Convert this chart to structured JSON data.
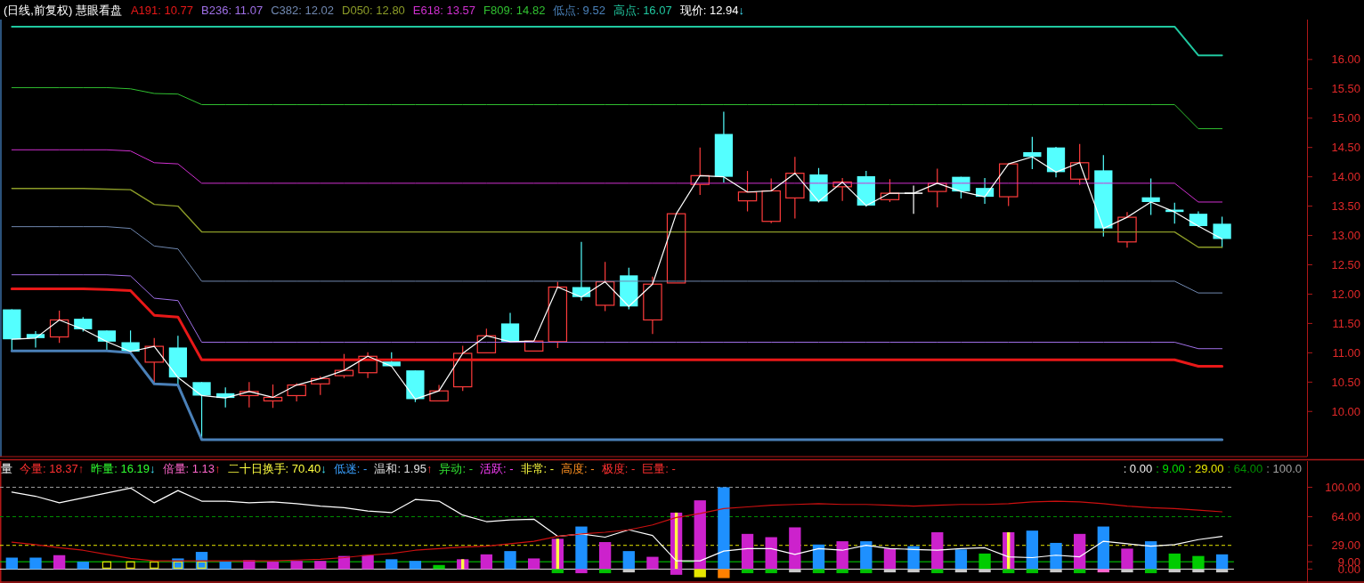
{
  "chart_data": [
    {
      "type": "candlestick",
      "title": "(日线,前复权) 慧眼看盘",
      "tick_labels": "y",
      "categories": [
        null,
        null,
        null,
        null,
        null,
        null,
        null,
        null,
        null,
        null,
        null,
        null,
        null,
        null,
        null,
        null,
        null,
        null,
        null,
        null,
        null,
        null,
        null,
        null,
        null,
        null,
        null,
        null,
        null,
        null,
        null,
        null,
        null,
        null,
        null,
        null,
        null,
        null,
        null,
        null,
        null,
        null,
        null,
        null,
        null,
        null,
        null,
        null,
        null,
        null,
        null,
        null
      ],
      "ohlc": [
        [
          11.74,
          11.74,
          11.04,
          11.23
        ],
        [
          11.32,
          11.37,
          11.09,
          11.25
        ],
        [
          11.27,
          11.72,
          11.17,
          11.56
        ],
        [
          11.58,
          11.61,
          11.36,
          11.4
        ],
        [
          11.38,
          11.38,
          11.04,
          11.19
        ],
        [
          11.18,
          11.38,
          11.0,
          11.02
        ],
        [
          10.84,
          11.25,
          10.5,
          11.11
        ],
        [
          11.09,
          11.29,
          10.46,
          10.58
        ],
        [
          10.5,
          10.5,
          9.53,
          10.27
        ],
        [
          10.31,
          10.41,
          10.07,
          10.23
        ],
        [
          10.27,
          10.5,
          10.07,
          10.34
        ],
        [
          10.18,
          10.46,
          10.06,
          10.24
        ],
        [
          10.27,
          10.48,
          10.17,
          10.45
        ],
        [
          10.47,
          10.6,
          10.28,
          10.56
        ],
        [
          10.61,
          10.98,
          10.57,
          10.7
        ],
        [
          10.66,
          11.01,
          10.57,
          10.94
        ],
        [
          10.85,
          11.01,
          10.77,
          10.77
        ],
        [
          10.7,
          10.7,
          10.16,
          10.21
        ],
        [
          10.18,
          10.45,
          10.18,
          10.35
        ],
        [
          10.42,
          11.12,
          10.35,
          10.99
        ],
        [
          11.0,
          11.41,
          11.0,
          11.29
        ],
        [
          11.5,
          11.68,
          11.19,
          11.19
        ],
        [
          11.03,
          11.2,
          11.03,
          11.2
        ],
        [
          11.19,
          12.21,
          11.08,
          12.12
        ],
        [
          12.12,
          12.89,
          11.89,
          11.95
        ],
        [
          11.81,
          12.55,
          11.71,
          12.21
        ],
        [
          12.32,
          12.45,
          11.74,
          11.79
        ],
        [
          11.56,
          12.3,
          11.32,
          12.17
        ],
        [
          12.19,
          13.37,
          12.19,
          13.37
        ],
        [
          13.87,
          14.5,
          13.69,
          14.02
        ],
        [
          14.73,
          15.11,
          13.9,
          14.0
        ],
        [
          13.59,
          14.1,
          13.41,
          13.74
        ],
        [
          13.24,
          13.97,
          13.21,
          13.76
        ],
        [
          13.64,
          14.34,
          13.29,
          14.06
        ],
        [
          14.04,
          14.15,
          13.56,
          13.58
        ],
        [
          13.83,
          13.98,
          13.59,
          13.91
        ],
        [
          14.01,
          14.1,
          13.49,
          13.51
        ],
        [
          13.61,
          13.96,
          13.57,
          13.72
        ],
        [
          13.72,
          13.85,
          13.37,
          13.72
        ],
        [
          13.75,
          14.14,
          13.48,
          13.89
        ],
        [
          14.0,
          14.0,
          13.63,
          13.75
        ],
        [
          13.81,
          13.98,
          13.54,
          13.66
        ],
        [
          13.66,
          14.22,
          13.5,
          14.22
        ],
        [
          14.42,
          14.68,
          14.13,
          14.34
        ],
        [
          14.5,
          14.51,
          13.99,
          14.08
        ],
        [
          13.96,
          14.56,
          13.86,
          14.24
        ],
        [
          14.11,
          14.37,
          12.98,
          13.12
        ],
        [
          12.89,
          13.4,
          12.79,
          13.31
        ],
        [
          13.65,
          13.97,
          13.35,
          13.57
        ],
        [
          13.44,
          13.56,
          13.2,
          13.4
        ],
        [
          13.37,
          13.41,
          13.14,
          13.16
        ],
        [
          13.2,
          13.32,
          12.79,
          12.94
        ]
      ],
      "series": [
        {
          "type": "line",
          "name": "A191: 10.77",
          "color": "#e81818",
          "values": [
            12.09,
            12.09,
            12.09,
            12.09,
            12.08,
            12.06,
            11.64,
            11.61,
            10.88,
            10.88,
            10.88,
            10.88,
            10.88,
            10.88,
            10.88,
            10.88,
            10.88,
            10.88,
            10.88,
            10.88,
            10.88,
            10.88,
            10.88,
            10.88,
            10.88,
            10.88,
            10.88,
            10.88,
            10.88,
            10.88,
            10.88,
            10.88,
            10.88,
            10.88,
            10.88,
            10.88,
            10.88,
            10.88,
            10.88,
            10.88,
            10.88,
            10.88,
            10.88,
            10.88,
            10.88,
            10.88,
            10.88,
            10.88,
            10.88,
            10.88,
            10.77,
            10.77
          ]
        },
        {
          "type": "line",
          "name": "B236: 11.07",
          "color": "#a070e8",
          "values": [
            12.33,
            12.33,
            12.33,
            12.33,
            12.33,
            12.31,
            11.93,
            11.89,
            11.18,
            11.18,
            11.18,
            11.18,
            11.18,
            11.18,
            11.18,
            11.18,
            11.18,
            11.18,
            11.18,
            11.18,
            11.18,
            11.18,
            11.18,
            11.18,
            11.18,
            11.18,
            11.18,
            11.18,
            11.18,
            11.18,
            11.18,
            11.18,
            11.18,
            11.18,
            11.18,
            11.18,
            11.18,
            11.18,
            11.18,
            11.18,
            11.18,
            11.18,
            11.18,
            11.18,
            11.18,
            11.18,
            11.18,
            11.18,
            11.18,
            11.18,
            11.07,
            11.07
          ]
        },
        {
          "type": "line",
          "name": "C382: 12.02",
          "color": "#7088b0",
          "values": [
            13.15,
            13.15,
            13.15,
            13.15,
            13.15,
            13.12,
            12.82,
            12.77,
            12.22,
            12.22,
            12.22,
            12.22,
            12.22,
            12.22,
            12.22,
            12.22,
            12.22,
            12.22,
            12.22,
            12.22,
            12.22,
            12.22,
            12.22,
            12.22,
            12.22,
            12.22,
            12.22,
            12.22,
            12.22,
            12.22,
            12.22,
            12.22,
            12.22,
            12.22,
            12.22,
            12.22,
            12.22,
            12.22,
            12.22,
            12.22,
            12.22,
            12.22,
            12.22,
            12.22,
            12.22,
            12.22,
            12.22,
            12.22,
            12.22,
            12.22,
            12.02,
            12.02
          ]
        },
        {
          "type": "line",
          "name": "D050: 12.80",
          "color": "#8c9c28",
          "values": [
            13.8,
            13.8,
            13.8,
            13.8,
            13.79,
            13.78,
            13.53,
            13.5,
            13.06,
            13.06,
            13.06,
            13.06,
            13.06,
            13.06,
            13.06,
            13.06,
            13.06,
            13.06,
            13.06,
            13.06,
            13.06,
            13.06,
            13.06,
            13.06,
            13.06,
            13.06,
            13.06,
            13.06,
            13.06,
            13.06,
            13.06,
            13.06,
            13.06,
            13.06,
            13.06,
            13.06,
            13.06,
            13.06,
            13.06,
            13.06,
            13.06,
            13.06,
            13.06,
            13.06,
            13.06,
            13.06,
            13.06,
            13.06,
            13.06,
            13.06,
            12.8,
            12.8
          ]
        },
        {
          "type": "line",
          "name": "E618: 13.57",
          "color": "#d030d0",
          "values": [
            14.46,
            14.46,
            14.46,
            14.46,
            14.46,
            14.44,
            14.24,
            14.22,
            13.89,
            13.89,
            13.89,
            13.89,
            13.89,
            13.89,
            13.89,
            13.89,
            13.89,
            13.89,
            13.89,
            13.89,
            13.89,
            13.89,
            13.89,
            13.89,
            13.89,
            13.89,
            13.89,
            13.89,
            13.89,
            13.89,
            13.89,
            13.89,
            13.89,
            13.89,
            13.89,
            13.89,
            13.89,
            13.89,
            13.89,
            13.89,
            13.89,
            13.89,
            13.89,
            13.89,
            13.89,
            13.89,
            13.89,
            13.89,
            13.89,
            13.89,
            13.57,
            13.57
          ]
        },
        {
          "type": "line",
          "name": "F809: 14.82",
          "color": "#30c030",
          "values": [
            15.52,
            15.52,
            15.52,
            15.52,
            15.52,
            15.5,
            15.42,
            15.41,
            15.23,
            15.23,
            15.23,
            15.23,
            15.23,
            15.23,
            15.23,
            15.23,
            15.23,
            15.23,
            15.23,
            15.23,
            15.23,
            15.23,
            15.23,
            15.23,
            15.23,
            15.23,
            15.23,
            15.23,
            15.23,
            15.23,
            15.23,
            15.23,
            15.23,
            15.23,
            15.23,
            15.23,
            15.23,
            15.23,
            15.23,
            15.23,
            15.23,
            15.23,
            15.23,
            15.23,
            15.23,
            15.23,
            15.23,
            15.23,
            15.23,
            15.23,
            14.82,
            14.82
          ]
        },
        {
          "type": "line",
          "name": "低点: 9.52",
          "color": "#4a80b8",
          "values": [
            11.03,
            11.03,
            11.03,
            11.03,
            11.03,
            11.0,
            10.47,
            10.45,
            9.52,
            9.52,
            9.52,
            9.52,
            9.52,
            9.52,
            9.52,
            9.52,
            9.52,
            9.52,
            9.52,
            9.52,
            9.52,
            9.52,
            9.52,
            9.52,
            9.52,
            9.52,
            9.52,
            9.52,
            9.52,
            9.52,
            9.52,
            9.52,
            9.52,
            9.52,
            9.52,
            9.52,
            9.52,
            9.52,
            9.52,
            9.52,
            9.52,
            9.52,
            9.52,
            9.52,
            9.52,
            9.52,
            9.52,
            9.52,
            9.52,
            9.52,
            9.52,
            9.52
          ]
        },
        {
          "type": "line",
          "name": "高点: 16.07",
          "color": "#20c8a0",
          "values": [
            16.56,
            16.56,
            16.56,
            16.56,
            16.56,
            16.56,
            16.56,
            16.56,
            16.56,
            16.56,
            16.56,
            16.56,
            16.56,
            16.56,
            16.56,
            16.56,
            16.56,
            16.56,
            16.56,
            16.56,
            16.56,
            16.56,
            16.56,
            16.56,
            16.56,
            16.56,
            16.56,
            16.56,
            16.56,
            16.56,
            16.56,
            16.56,
            16.56,
            16.56,
            16.56,
            16.56,
            16.56,
            16.56,
            16.56,
            16.56,
            16.56,
            16.56,
            16.56,
            16.56,
            16.56,
            16.56,
            16.56,
            16.56,
            16.56,
            16.56,
            16.07,
            16.07
          ]
        },
        {
          "type": "line",
          "name": "现价: 12.94↓",
          "color": "#ffffff",
          "values": [
            11.23,
            11.25,
            11.56,
            11.4,
            11.19,
            11.02,
            11.11,
            10.58,
            10.27,
            10.23,
            10.34,
            10.24,
            10.45,
            10.56,
            10.7,
            10.94,
            10.77,
            10.21,
            10.35,
            10.99,
            11.29,
            11.19,
            11.2,
            12.12,
            11.95,
            12.21,
            11.79,
            12.17,
            13.37,
            14.02,
            14.0,
            13.74,
            13.76,
            14.06,
            13.58,
            13.91,
            13.51,
            13.72,
            13.72,
            13.89,
            13.75,
            13.66,
            14.22,
            14.34,
            14.08,
            14.24,
            13.12,
            13.31,
            13.57,
            13.4,
            13.16,
            12.94
          ]
        }
      ],
      "ylim": [
        9.23,
        16.68
      ],
      "yticks": [
        {
          "value": 10,
          "label": "10.00"
        },
        {
          "value": 10.5,
          "label": "10.50"
        },
        {
          "value": 11,
          "label": "11.00"
        },
        {
          "value": 11.5,
          "label": "11.50"
        },
        {
          "value": 12,
          "label": "12.00"
        },
        {
          "value": 12.5,
          "label": "12.50"
        },
        {
          "value": 13,
          "label": "13.00"
        },
        {
          "value": 13.5,
          "label": "13.50"
        },
        {
          "value": 14,
          "label": "14.00"
        },
        {
          "value": 14.5,
          "label": "14.50"
        },
        {
          "value": 15,
          "label": "15.00"
        },
        {
          "value": 15.5,
          "label": "15.50"
        },
        {
          "value": 16,
          "label": "16.00"
        }
      ]
    },
    {
      "type": "bar",
      "tick_labels": "y",
      "stacked": true,
      "categories": [
        null,
        null,
        null,
        null,
        null,
        null,
        null,
        null,
        null,
        null,
        null,
        null,
        null,
        null,
        null,
        null,
        null,
        null,
        null,
        null,
        null,
        null,
        null,
        null,
        null,
        null,
        null,
        null,
        null,
        null,
        null,
        null,
        null,
        null,
        null,
        null,
        null,
        null,
        null,
        null,
        null,
        null,
        null,
        null,
        null,
        null,
        null,
        null,
        null,
        null,
        null,
        null
      ],
      "annotations": [
        "量",
        "今量: 18.37↑",
        "昨量: 16.19↓",
        "倍量: 1.13↑",
        "二十日换手: 70.40↓",
        "低迷: -",
        "温和: 1.95↑",
        "异动: -",
        "活跃: -",
        "非常: -",
        "高度: -",
        "极度: -",
        "巨量: -"
      ],
      "series": [
        {
          "values": [
            14,
            14,
            17,
            9,
            null,
            null,
            null,
            13,
            21,
            9,
            11,
            9,
            10,
            10,
            16,
            17,
            12,
            10,
            5,
            12,
            18,
            22,
            13,
            37,
            52,
            33,
            22,
            15,
            69,
            84,
            100,
            43,
            39,
            51,
            30,
            34,
            34,
            25,
            28,
            45,
            24,
            19,
            45,
            47,
            32,
            43,
            52,
            25,
            34,
            19,
            16,
            18
          ],
          "colors": [
            "#1e90ff",
            "#1e90ff",
            "#cc22cc",
            "#1e90ff",
            null,
            null,
            null,
            "#1e90ff",
            "#1e90ff",
            "#1e90ff",
            "#cc22cc",
            "#cc22cc",
            "#cc22cc",
            "#cc22cc",
            "#cc22cc",
            "#cc22cc",
            "#1e90ff",
            "#1e90ff",
            "#00cc00",
            "#cc22cc",
            "#cc22cc",
            "#1e90ff",
            "#cc22cc",
            "#cc22cc",
            "#1e90ff",
            "#cc22cc",
            "#1e90ff",
            "#cc22cc",
            "#cc22cc",
            "#cc22cc",
            "#1e90ff",
            "#cc22cc",
            "#cc22cc",
            "#cc22cc",
            "#1e90ff",
            "#cc22cc",
            "#1e90ff",
            "#cc22cc",
            "#1e90ff",
            "#cc22cc",
            "#1e90ff",
            "#00cc00",
            "#cc22cc",
            "#1e90ff",
            "#1e90ff",
            "#cc22cc",
            "#1e90ff",
            "#cc22cc",
            "#1e90ff",
            "#00cc00",
            "#00cc00",
            "#1e90ff"
          ],
          "errors": [
            null,
            null,
            null,
            null,
            null,
            null,
            null,
            null,
            null,
            null,
            null,
            null,
            null,
            null,
            null,
            null,
            null,
            null,
            null,
            [
              0,
              12
            ],
            null,
            null,
            null,
            [
              0,
              37
            ],
            null,
            null,
            null,
            null,
            [
              0,
              69
            ],
            null,
            null,
            null,
            null,
            null,
            null,
            null,
            null,
            null,
            null,
            null,
            null,
            null,
            [
              0,
              45
            ],
            null,
            null,
            null,
            null,
            null,
            null,
            null,
            null,
            null
          ]
        },
        {
          "values": [
            null,
            null,
            null,
            null,
            null,
            null,
            null,
            null,
            null,
            null,
            null,
            null,
            null,
            null,
            null,
            null,
            null,
            null,
            null,
            null,
            null,
            null,
            null,
            -5,
            -5,
            -5,
            -4,
            null,
            -7,
            -10,
            -11,
            -5,
            -5,
            -4,
            -5,
            -5,
            -5,
            -4,
            -4,
            -5,
            -4,
            -4,
            -5,
            -5,
            -4,
            -5,
            -4,
            -4,
            -5,
            -4,
            -4,
            -4
          ],
          "colors": [
            null,
            null,
            null,
            null,
            null,
            null,
            null,
            null,
            null,
            null,
            null,
            null,
            null,
            null,
            null,
            null,
            null,
            null,
            null,
            null,
            null,
            null,
            null,
            "#00c000",
            "#cc22cc",
            "#00c000",
            "#c8c8c8",
            null,
            "#cc22cc",
            "#e6e600",
            "#ff8000",
            "#00c000",
            "#00c000",
            "#c8c8c8",
            "#00c000",
            "#00c000",
            "#00c000",
            "#c8c8c8",
            "#c8c8c8",
            "#00c000",
            "#c8c8c8",
            "#c8c8c8",
            "#00c000",
            "#00c000",
            "#c8c8c8",
            "#00c000",
            "#ff66cc",
            "#c8c8c8",
            "#00c000",
            "#c8c8c8",
            "#c8c8c8",
            "#c8c8c8"
          ]
        },
        {
          "type": "scatter",
          "marker": "square",
          "color": "#e6e600",
          "values": [
            null,
            null,
            null,
            null,
            5,
            5,
            5,
            5,
            5,
            null,
            null,
            null,
            null,
            null,
            null,
            null,
            null,
            null,
            null,
            null,
            null,
            null,
            null,
            null,
            null,
            null,
            null,
            null,
            null,
            null,
            null,
            null,
            null,
            null,
            null,
            null,
            null,
            null,
            null,
            null,
            null,
            null,
            null,
            null,
            null,
            null,
            null,
            null,
            null,
            null,
            null,
            null
          ]
        },
        {
          "type": "line",
          "color": "#ffffff",
          "values": [
            94,
            89,
            81,
            87,
            93,
            99,
            81,
            96,
            83,
            83,
            81,
            82,
            80,
            77,
            75,
            71,
            69,
            85,
            83,
            66,
            58,
            60,
            61,
            40,
            43,
            39,
            48,
            41,
            10,
            10,
            22,
            25,
            25,
            18,
            25,
            23,
            29,
            25,
            24,
            23,
            25,
            26,
            15,
            14,
            17,
            15,
            34,
            31,
            28,
            30,
            36,
            40
          ]
        },
        {
          "type": "line",
          "color": "#cc1010",
          "values": [
            33,
            30,
            26,
            23,
            18,
            13,
            10,
            10,
            10,
            10,
            10,
            10,
            11,
            12,
            14,
            17,
            19,
            23,
            25,
            27,
            28,
            31,
            34,
            40,
            43,
            45,
            48,
            54,
            63,
            68,
            74,
            76,
            78,
            79,
            80,
            79,
            79,
            78,
            77,
            78,
            79,
            79,
            80,
            82,
            83,
            82,
            80,
            77,
            75,
            74,
            72,
            70
          ]
        }
      ],
      "ref_lines": [
        {
          "axis": "y",
          "value": 0,
          "label": ": 0.00",
          "color": "#f0f0f0",
          "line_style": "solid"
        },
        {
          "axis": "y",
          "value": 9,
          "label": ": 9.00",
          "color": "#00e000",
          "line_style": "solid"
        },
        {
          "axis": "y",
          "value": 29,
          "label": ": 29.00",
          "color": "#e6e600",
          "line_style": "dashed"
        },
        {
          "axis": "y",
          "value": 64,
          "label": ": 64.00",
          "color": "#009000",
          "line_style": "dashed"
        },
        {
          "axis": "y",
          "value": 100,
          "label": ": 100.0",
          "color": "#a0a0a0",
          "line_style": "dashed"
        }
      ],
      "ylim": [
        -17,
        132
      ],
      "yticks": [
        {
          "value": 0,
          "label": "0.00"
        },
        {
          "value": 9,
          "label": "9.00"
        },
        {
          "value": 29,
          "label": "29.00"
        },
        {
          "value": 64,
          "label": "64.00"
        },
        {
          "value": 100,
          "label": "100.00"
        }
      ]
    }
  ]
}
